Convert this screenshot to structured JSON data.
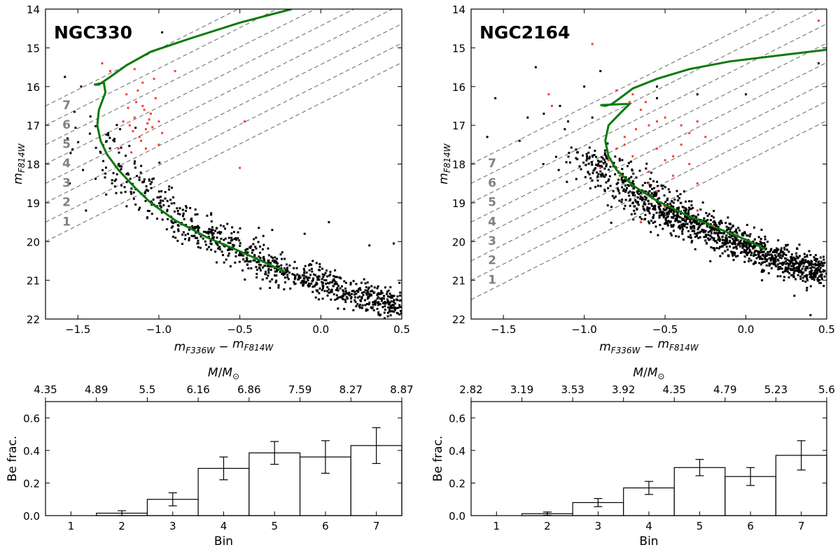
{
  "chart_data": [
    {
      "type": "scatter",
      "name": "NGC330",
      "title": "NGC330",
      "xlabel": "m_F336W − m_F814W",
      "ylabel": "m_F814W",
      "xlim": [
        -1.7,
        0.5
      ],
      "ylim": [
        22,
        14
      ],
      "xticks": [
        "−1.5",
        "−1.0",
        "−0.5",
        "0.0",
        "0.5"
      ],
      "xtick_values": [
        -1.5,
        -1.0,
        -0.5,
        0.0,
        0.5
      ],
      "yticks": [
        "14",
        "15",
        "16",
        "17",
        "18",
        "19",
        "20",
        "21",
        "22"
      ],
      "ytick_values": [
        14,
        15,
        16,
        17,
        18,
        19,
        20,
        21,
        22
      ],
      "bin_lines": {
        "slope": 2.1,
        "intercepts_at_xmin": [
          20.0,
          19.5,
          19.0,
          18.5,
          18.0,
          17.5,
          17.0,
          16.5
        ]
      },
      "bin_labels": [
        "1",
        "2",
        "3",
        "4",
        "5",
        "6",
        "7"
      ],
      "bin_label_x": -1.57,
      "isochrone": [
        [
          -0.18,
          14.0
        ],
        [
          -0.5,
          14.35
        ],
        [
          -0.8,
          14.75
        ],
        [
          -1.05,
          15.1
        ],
        [
          -1.2,
          15.45
        ],
        [
          -1.3,
          15.75
        ],
        [
          -1.37,
          15.95
        ],
        [
          -1.4,
          15.95
        ],
        [
          -1.34,
          15.9
        ],
        [
          -1.33,
          16.15
        ],
        [
          -1.37,
          16.6
        ],
        [
          -1.38,
          17.0
        ],
        [
          -1.36,
          17.4
        ],
        [
          -1.32,
          17.75
        ],
        [
          -1.25,
          18.15
        ],
        [
          -1.15,
          18.6
        ],
        [
          -1.05,
          19.0
        ],
        [
          -0.9,
          19.45
        ],
        [
          -0.7,
          19.9
        ],
        [
          -0.5,
          20.25
        ],
        [
          -0.22,
          20.78
        ]
      ],
      "main_sequence": [
        [
          -1.4,
          17.0
        ],
        [
          -1.2,
          18.35
        ],
        [
          -1.0,
          19.05
        ],
        [
          -0.8,
          19.6
        ],
        [
          -0.6,
          20.05
        ],
        [
          -0.4,
          20.45
        ],
        [
          -0.2,
          20.8
        ],
        [
          0.0,
          21.1
        ],
        [
          0.2,
          21.35
        ],
        [
          0.5,
          21.7
        ]
      ],
      "ms_count": 900,
      "be_stars": [
        [
          -1.1,
          16.5
        ],
        [
          -1.15,
          16.8
        ],
        [
          -1.08,
          17.1
        ],
        [
          -1.2,
          16.2
        ],
        [
          -1.05,
          16.7
        ],
        [
          -1.12,
          17.3
        ],
        [
          -1.0,
          17.5
        ],
        [
          -1.18,
          17.0
        ],
        [
          -1.1,
          15.9
        ],
        [
          -1.25,
          17.6
        ],
        [
          -0.5,
          18.1
        ],
        [
          -0.47,
          16.9
        ],
        [
          -1.3,
          15.6
        ],
        [
          -1.02,
          16.3
        ],
        [
          -1.14,
          16.4
        ],
        [
          -1.07,
          16.95
        ],
        [
          -1.16,
          17.15
        ],
        [
          -1.04,
          17.05
        ],
        [
          -1.09,
          16.6
        ],
        [
          -1.11,
          17.4
        ],
        [
          -1.13,
          16.1
        ],
        [
          -1.06,
          16.85
        ],
        [
          -1.0,
          16.9
        ],
        [
          -0.98,
          17.2
        ],
        [
          -1.19,
          16.55
        ],
        [
          -1.22,
          16.9
        ],
        [
          -1.03,
          15.8
        ],
        [
          -0.9,
          15.6
        ],
        [
          -1.35,
          15.4
        ],
        [
          -1.15,
          15.55
        ],
        [
          -1.08,
          17.6
        ],
        [
          -1.17,
          17.7
        ]
      ],
      "field_stars": [
        [
          -1.58,
          15.75
        ],
        [
          -0.98,
          14.6
        ],
        [
          -1.48,
          16.0
        ],
        [
          -0.4,
          19.9
        ],
        [
          -0.3,
          19.7
        ],
        [
          0.05,
          19.5
        ],
        [
          -0.1,
          19.8
        ],
        [
          0.3,
          20.1
        ],
        [
          0.45,
          20.05
        ],
        [
          -0.05,
          21.3
        ],
        [
          -1.45,
          19.2
        ],
        [
          -1.55,
          18.5
        ]
      ]
    },
    {
      "type": "scatter",
      "name": "NGC2164",
      "title": "NGC2164",
      "xlabel": "m_F336W − m_F814W",
      "ylabel": "m_F814W",
      "xlim": [
        -1.7,
        0.5
      ],
      "ylim": [
        22,
        14
      ],
      "xticks": [
        "−1.5",
        "−1.0",
        "−0.5",
        "0.0",
        "0.5"
      ],
      "xtick_values": [
        -1.5,
        -1.0,
        -0.5,
        0.0,
        0.5
      ],
      "yticks": [
        "14",
        "15",
        "16",
        "17",
        "18",
        "19",
        "20",
        "21",
        "22"
      ],
      "ytick_values": [
        14,
        15,
        16,
        17,
        18,
        19,
        20,
        21,
        22
      ],
      "bin_lines": {
        "slope": 2.1,
        "intercepts_at_xmin": [
          21.5,
          21.0,
          20.5,
          20.0,
          19.5,
          19.0,
          18.5,
          18.0
        ]
      },
      "bin_labels": [
        "1",
        "2",
        "3",
        "4",
        "5",
        "6",
        "7"
      ],
      "bin_label_x": -1.57,
      "isochrone": [
        [
          0.5,
          15.05
        ],
        [
          0.2,
          15.2
        ],
        [
          -0.1,
          15.35
        ],
        [
          -0.35,
          15.55
        ],
        [
          -0.55,
          15.8
        ],
        [
          -0.7,
          16.05
        ],
        [
          -0.78,
          16.3
        ],
        [
          -0.83,
          16.45
        ],
        [
          -0.87,
          16.5
        ],
        [
          -0.9,
          16.48
        ],
        [
          -0.75,
          16.45
        ],
        [
          -0.72,
          16.45
        ],
        [
          -0.78,
          16.7
        ],
        [
          -0.85,
          17.0
        ],
        [
          -0.87,
          17.4
        ],
        [
          -0.85,
          17.8
        ],
        [
          -0.8,
          18.15
        ],
        [
          -0.7,
          18.55
        ],
        [
          -0.55,
          18.95
        ],
        [
          -0.35,
          19.35
        ],
        [
          -0.15,
          19.7
        ],
        [
          0.0,
          19.95
        ],
        [
          0.12,
          20.2
        ]
      ],
      "main_sequence": [
        [
          -1.0,
          17.6
        ],
        [
          -0.85,
          18.2
        ],
        [
          -0.7,
          18.7
        ],
        [
          -0.5,
          19.2
        ],
        [
          -0.3,
          19.6
        ],
        [
          -0.1,
          19.95
        ],
        [
          0.1,
          20.3
        ],
        [
          0.3,
          20.6
        ],
        [
          0.5,
          20.85
        ]
      ],
      "ms_count": 1300,
      "be_stars": [
        [
          -0.7,
          16.2
        ],
        [
          -0.65,
          16.6
        ],
        [
          -0.6,
          17.0
        ],
        [
          -0.75,
          17.3
        ],
        [
          -0.55,
          17.6
        ],
        [
          -0.5,
          17.9
        ],
        [
          -0.7,
          17.8
        ],
        [
          -0.8,
          17.6
        ],
        [
          -0.6,
          18.2
        ],
        [
          -0.45,
          18.3
        ],
        [
          -0.4,
          17.0
        ],
        [
          -0.35,
          17.2
        ],
        [
          -0.55,
          16.9
        ],
        [
          -0.85,
          17.9
        ],
        [
          -0.9,
          18.1
        ],
        [
          -1.22,
          16.2
        ],
        [
          -1.2,
          16.5
        ],
        [
          -0.95,
          14.9
        ],
        [
          -0.72,
          16.4
        ],
        [
          -0.5,
          16.8
        ],
        [
          -0.45,
          17.8
        ],
        [
          -0.3,
          18.5
        ],
        [
          -0.6,
          18.5
        ],
        [
          -0.65,
          19.5
        ],
        [
          -0.2,
          19.6
        ],
        [
          -0.8,
          16.1
        ],
        [
          -0.3,
          16.9
        ],
        [
          -0.25,
          17.3
        ],
        [
          -0.75,
          17.5
        ],
        [
          -0.68,
          17.1
        ],
        [
          -0.4,
          17.5
        ],
        [
          -0.55,
          18.7
        ],
        [
          -0.62,
          16.4
        ],
        [
          0.45,
          14.3
        ],
        [
          -0.35,
          18.0
        ],
        [
          -0.5,
          19.1
        ],
        [
          -0.78,
          18.3
        ],
        [
          -0.3,
          19.2
        ]
      ],
      "field_stars": [
        [
          -1.55,
          16.3
        ],
        [
          -1.3,
          15.5
        ],
        [
          -1.35,
          16.8
        ],
        [
          -1.15,
          16.5
        ],
        [
          -1.1,
          16.9
        ],
        [
          -1.4,
          17.4
        ],
        [
          -1.0,
          16.0
        ],
        [
          -0.9,
          15.6
        ],
        [
          -0.55,
          16.0
        ],
        [
          -0.3,
          16.2
        ],
        [
          0.0,
          16.2
        ],
        [
          0.45,
          15.4
        ],
        [
          -1.6,
          17.3
        ],
        [
          -1.25,
          16.7
        ],
        [
          0.4,
          21.9
        ],
        [
          0.3,
          21.4
        ],
        [
          0.1,
          21.0
        ],
        [
          -1.12,
          17.1
        ],
        [
          -0.95,
          16.8
        ],
        [
          -0.55,
          16.3
        ]
      ]
    },
    {
      "type": "bar",
      "name": "NGC330_fraction",
      "categories": [
        "1",
        "2",
        "3",
        "4",
        "5",
        "6",
        "7"
      ],
      "values": [
        0.0,
        0.015,
        0.1,
        0.29,
        0.385,
        0.36,
        0.43
      ],
      "errors": [
        0.0,
        0.015,
        0.04,
        0.07,
        0.07,
        0.1,
        0.11
      ],
      "xlabel": "Bin",
      "ylabel": "Be frac.",
      "ylim": [
        0.0,
        0.7
      ],
      "yticks": [
        "0.0",
        "0.2",
        "0.4",
        "0.6"
      ],
      "ytick_values": [
        0.0,
        0.2,
        0.4,
        0.6
      ],
      "top_axis_label": "M/M⊙",
      "top_ticks": [
        "4.35",
        "4.89",
        "5.5",
        "6.16",
        "6.86",
        "7.59",
        "8.27",
        "8.87"
      ]
    },
    {
      "type": "bar",
      "name": "NGC2164_fraction",
      "categories": [
        "1",
        "2",
        "3",
        "4",
        "5",
        "6",
        "7"
      ],
      "values": [
        0.0,
        0.012,
        0.08,
        0.17,
        0.295,
        0.24,
        0.37
      ],
      "errors": [
        0.0,
        0.01,
        0.025,
        0.04,
        0.05,
        0.055,
        0.09
      ],
      "xlabel": "Bin",
      "ylabel": "Be frac.",
      "ylim": [
        0.0,
        0.7
      ],
      "yticks": [
        "0.0",
        "0.2",
        "0.4",
        "0.6"
      ],
      "ytick_values": [
        0.0,
        0.2,
        0.4,
        0.6
      ],
      "top_axis_label": "M/M⊙",
      "top_ticks": [
        "2.82",
        "3.19",
        "3.53",
        "3.92",
        "4.35",
        "4.79",
        "5.23",
        "5.6"
      ]
    }
  ],
  "colors": {
    "isochrone": "#0a7a0a",
    "be_star": "#ff3b30",
    "star": "#000000",
    "bin_label": "#808080",
    "bin_line": "#666666"
  }
}
